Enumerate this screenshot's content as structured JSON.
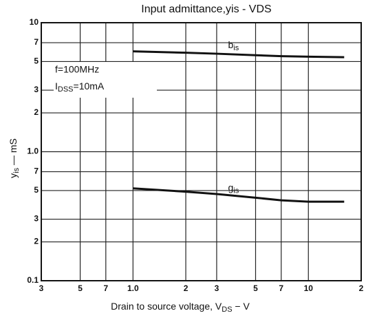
{
  "chart_data": {
    "type": "line",
    "log_x": true,
    "log_y": true,
    "grid": true,
    "title": "Input admittance,yis - VDS",
    "x_label": {
      "main": "Drain to source voltage, V",
      "sub": "DS",
      "rest": " − V"
    },
    "y_label": {
      "main": "y",
      "sub": "is",
      "rest": " — mS"
    },
    "annotations": [
      {
        "main": "f=100MHz"
      },
      {
        "main": "I",
        "sub": "DSS",
        "rest": "=10mA"
      }
    ],
    "xlim": [
      0.3,
      20
    ],
    "xticks": [
      {
        "value": 0.3,
        "label": "3"
      },
      {
        "value": 0.5,
        "label": "5"
      },
      {
        "value": 0.7,
        "label": "7"
      },
      {
        "value": 1,
        "label": "1.0"
      },
      2,
      3,
      5,
      7,
      10,
      {
        "value": 20,
        "label": "2"
      }
    ],
    "ylim": [
      0.1,
      10
    ],
    "yticks": [
      0.1,
      {
        "value": 0.2,
        "label": "2"
      },
      {
        "value": 0.3,
        "label": "3"
      },
      {
        "value": 0.5,
        "label": "5"
      },
      {
        "value": 0.7,
        "label": "7"
      },
      {
        "value": 1,
        "label": "1.0"
      },
      2,
      3,
      5,
      7,
      10
    ],
    "x": [
      1,
      2,
      3,
      5,
      7,
      10,
      16
    ],
    "series": [
      {
        "name": "b",
        "name_sub": "is",
        "color": "#111",
        "values": [
          6.0,
          5.85,
          5.75,
          5.6,
          5.5,
          5.45,
          5.4
        ]
      },
      {
        "name": "g",
        "name_sub": "is",
        "color": "#111",
        "values": [
          0.52,
          0.49,
          0.47,
          0.44,
          0.42,
          0.41,
          0.41
        ]
      }
    ]
  }
}
